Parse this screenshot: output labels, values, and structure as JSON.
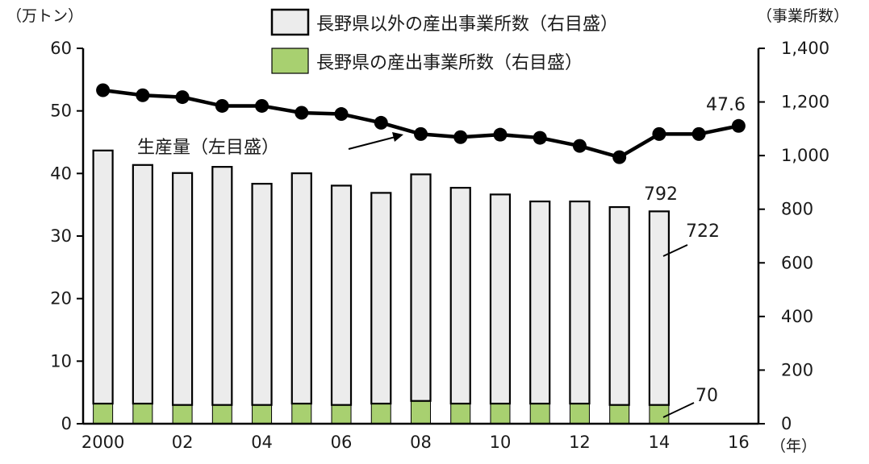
{
  "chart_data": {
    "type": "bar+line",
    "title": "",
    "left_axis": {
      "unit_label": "（万トン）",
      "ylim": [
        0,
        60
      ],
      "ticks": [
        "0",
        "10",
        "20",
        "30",
        "40",
        "50",
        "60"
      ]
    },
    "right_axis": {
      "unit_label": "（事業所数）",
      "ylim": [
        0,
        1400
      ],
      "ticks": [
        "0",
        "200",
        "400",
        "600",
        "800",
        "1,000",
        "1,200",
        "1,400"
      ]
    },
    "x_axis": {
      "unit_label": "（年）",
      "years": [
        2000,
        2001,
        2002,
        2003,
        2004,
        2005,
        2006,
        2007,
        2008,
        2009,
        2010,
        2011,
        2012,
        2013,
        2014,
        2015,
        2016
      ],
      "tick_labels": [
        {
          "year": 2000,
          "label": "2000"
        },
        {
          "year": 2002,
          "label": "02"
        },
        {
          "year": 2004,
          "label": "04"
        },
        {
          "year": 2006,
          "label": "06"
        },
        {
          "year": 2008,
          "label": "08"
        },
        {
          "year": 2010,
          "label": "10"
        },
        {
          "year": 2012,
          "label": "12"
        },
        {
          "year": 2014,
          "label": "14"
        },
        {
          "year": 2016,
          "label": "16"
        }
      ]
    },
    "bar_years": [
      2000,
      2001,
      2002,
      2003,
      2004,
      2005,
      2006,
      2007,
      2008,
      2009,
      2010,
      2011,
      2012,
      2013,
      2014
    ],
    "series": [
      {
        "name": "長野県以外の産出事業所数（右目盛）",
        "type": "bar",
        "axis": "right",
        "color": "#ececec",
        "values": [
          944,
          890,
          865,
          888,
          825,
          859,
          818,
          786,
          845,
          805,
          780,
          754,
          754,
          738,
          722
        ]
      },
      {
        "name": "長野県の産出事業所数（右目盛）",
        "type": "bar",
        "axis": "right",
        "color": "#a8d070",
        "values": [
          75,
          75,
          70,
          70,
          70,
          75,
          70,
          75,
          85,
          75,
          75,
          75,
          75,
          70,
          70
        ]
      },
      {
        "name": "生産量（左目盛）",
        "type": "line",
        "axis": "left",
        "color": "#000000",
        "x": [
          2000,
          2001,
          2002,
          2003,
          2004,
          2005,
          2006,
          2007,
          2008,
          2009,
          2010,
          2011,
          2012,
          2013,
          2014,
          2015,
          2016
        ],
        "values": [
          53.3,
          52.5,
          52.2,
          50.8,
          50.8,
          49.7,
          49.5,
          48.1,
          46.3,
          45.8,
          46.2,
          45.7,
          44.4,
          42.6,
          46.3,
          46.3,
          47.6
        ]
      }
    ],
    "annotations": {
      "line_label": "生産量（左目盛）",
      "last_line_value": "47.6",
      "last_total": "792",
      "last_other": "722",
      "last_nagano": "70"
    },
    "legend_position": "top"
  }
}
